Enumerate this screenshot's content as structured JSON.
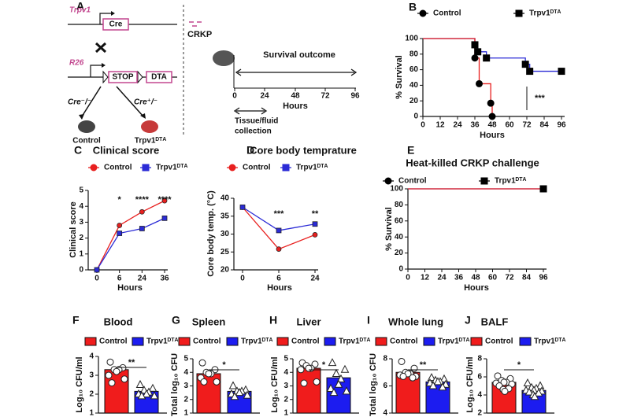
{
  "diagram": {
    "panel": "A",
    "gene1": "Trpv1",
    "box1": "Cre",
    "gene2": "R26",
    "box2": "STOP",
    "box3": "DTA",
    "genotype1": "Cre⁻/⁻",
    "genotype2": "Cre⁺/⁻",
    "group1": "Control",
    "group2": "Trpv1ᴰᵀᴬ",
    "pathogen": "CRKP",
    "outcome": "Survival outcome",
    "ticks": [
      "0",
      "24",
      "48",
      "72",
      "96"
    ],
    "axis_label": "Hours",
    "collection": [
      "Tissue/fluid",
      "collection"
    ]
  },
  "chart_data": [
    {
      "panel": "B",
      "type": "step",
      "xlabel": "Hours",
      "ylabel": "% Survival",
      "annotations": [
        "***"
      ],
      "xlim": [
        0,
        96
      ],
      "xticks": [
        0,
        12,
        24,
        36,
        48,
        60,
        72,
        84,
        96
      ],
      "ylim": [
        0,
        100
      ],
      "yticks": [
        0,
        20,
        40,
        60,
        80,
        100
      ],
      "series": [
        {
          "name": "Control",
          "color": "#e8201f",
          "marker": "circle",
          "marker_color": "#000000",
          "x": [
            0,
            36,
            36,
            39,
            47,
            48
          ],
          "values": [
            100,
            92,
            75,
            42,
            17,
            0
          ]
        },
        {
          "name": "Trpv1ᴰᵀᴬ",
          "color": "#2b2bd6",
          "marker": "square",
          "marker_color": "#000000",
          "x": [
            0,
            36,
            38,
            44,
            71,
            74,
            96
          ],
          "values": [
            100,
            92,
            83,
            75,
            67,
            58,
            58
          ]
        }
      ]
    },
    {
      "panel": "C",
      "type": "line",
      "title": "Clinical score",
      "xlabel": "Hours",
      "ylabel": "Clinical score",
      "annotations": [
        "*",
        "****",
        "****"
      ],
      "categories": [
        "0",
        "6",
        "24",
        "36"
      ],
      "ylim": [
        0,
        5
      ],
      "yticks": [
        0,
        1,
        2,
        3,
        4,
        5
      ],
      "series": [
        {
          "name": "Control",
          "color": "#e8201f",
          "marker": "circle",
          "values": [
            0,
            2.8,
            3.65,
            4.35
          ]
        },
        {
          "name": "Trpv1ᴰᵀᴬ",
          "color": "#2b2bd6",
          "marker": "square",
          "values": [
            0,
            2.3,
            2.6,
            3.25
          ]
        }
      ]
    },
    {
      "panel": "D",
      "type": "line",
      "title": "Core body temprature",
      "xlabel": "Hours",
      "ylabel": "Core body temp. (°C)",
      "annotations": [
        "***",
        "**"
      ],
      "categories": [
        "0",
        "6",
        "24"
      ],
      "ylim": [
        20,
        40
      ],
      "yticks": [
        20,
        25,
        30,
        35,
        40
      ],
      "series": [
        {
          "name": "Control",
          "color": "#e8201f",
          "marker": "circle",
          "values": [
            37.5,
            25.8,
            29.8
          ]
        },
        {
          "name": "Trpv1ᴰᵀᴬ",
          "color": "#2b2bd6",
          "marker": "square",
          "values": [
            37.5,
            31,
            32.8
          ]
        }
      ]
    },
    {
      "panel": "E",
      "type": "step",
      "title": "Heat-killed CRKP challenge",
      "xlabel": "Hours",
      "ylabel": "% Survival",
      "xlim": [
        0,
        96
      ],
      "xticks": [
        0,
        12,
        24,
        36,
        48,
        60,
        72,
        84,
        96
      ],
      "ylim": [
        0,
        100
      ],
      "yticks": [
        0,
        20,
        40,
        60,
        80,
        100
      ],
      "series": [
        {
          "name": "Control",
          "color": "#e8201f",
          "marker": "circle",
          "marker_color": "#000000",
          "x": [
            0,
            96
          ],
          "values": [
            100,
            100
          ]
        },
        {
          "name": "Trpv1ᴰᵀᴬ",
          "color": "#2b2bd6",
          "marker": "square",
          "marker_color": "#000000",
          "x": [
            0,
            96
          ],
          "values": [
            100,
            100
          ]
        }
      ]
    },
    {
      "panel": "F",
      "type": "bar",
      "title": "Blood",
      "ylabel": "Log₁₀ CFU/ml",
      "annotations": [
        "**"
      ],
      "ylim": [
        1,
        4
      ],
      "yticks": [
        1,
        2,
        3,
        4
      ],
      "series": [
        {
          "name": "Control",
          "color": "#f01c1c",
          "marker": "circle",
          "values": [
            3.3
          ],
          "points": [
            3.7,
            3.4,
            3.3,
            3.3,
            3.2,
            3.0,
            2.8,
            2.6
          ]
        },
        {
          "name": "Trpv1ᴰᵀᴬ",
          "color": "#1c1cf0",
          "marker": "triangle",
          "values": [
            2.15
          ],
          "points": [
            2.5,
            2.3,
            2.2,
            2.1,
            2.0,
            2.0,
            1.9,
            1.9
          ]
        }
      ]
    },
    {
      "panel": "G",
      "type": "bar",
      "title": "Spleen",
      "ylabel": "Total log₁₀ CFU",
      "annotations": [
        "*"
      ],
      "ylim": [
        1,
        5
      ],
      "yticks": [
        1,
        2,
        3,
        4,
        5
      ],
      "series": [
        {
          "name": "Control",
          "color": "#f01c1c",
          "marker": "circle",
          "values": [
            3.9
          ],
          "points": [
            4.7,
            4.2,
            4.0,
            3.9,
            3.9,
            3.6,
            3.3,
            3.3
          ]
        },
        {
          "name": "Trpv1ᴰᵀᴬ",
          "color": "#1c1cf0",
          "marker": "triangle",
          "values": [
            2.6
          ],
          "points": [
            3.0,
            2.7,
            2.6,
            2.6,
            2.5,
            2.4,
            2.3,
            2.2
          ]
        }
      ]
    },
    {
      "panel": "H",
      "type": "bar",
      "title": "Liver",
      "ylabel": "Log₁₀ CFU/ml",
      "annotations": [
        "*"
      ],
      "ylim": [
        1,
        5
      ],
      "yticks": [
        1,
        2,
        3,
        4,
        5
      ],
      "series": [
        {
          "name": "Control",
          "color": "#f01c1c",
          "marker": "circle",
          "values": [
            4.3
          ],
          "points": [
            4.7,
            4.6,
            4.5,
            4.3,
            4.3,
            4.2,
            3.3,
            3.2
          ]
        },
        {
          "name": "Trpv1ᴰᵀᴬ",
          "color": "#1c1cf0",
          "marker": "triangle",
          "values": [
            3.6
          ],
          "points": [
            4.7,
            4.2,
            3.9,
            3.5,
            3.1,
            2.8,
            2.6,
            2.5
          ]
        }
      ]
    },
    {
      "panel": "I",
      "type": "bar",
      "title": "Whole lung",
      "ylabel": "Total log₁₀ CFU",
      "annotations": [
        "**"
      ],
      "ylim": [
        4,
        8
      ],
      "yticks": [
        4,
        6,
        8
      ],
      "series": [
        {
          "name": "Control",
          "color": "#f01c1c",
          "marker": "circle",
          "values": [
            7.0
          ],
          "points": [
            7.8,
            7.3,
            7.0,
            6.9,
            6.9,
            6.8,
            6.7,
            6.7,
            6.6
          ]
        },
        {
          "name": "Trpv1ᴰᵀᴬ",
          "color": "#1c1cf0",
          "marker": "triangle",
          "values": [
            6.3
          ],
          "points": [
            6.6,
            6.5,
            6.4,
            6.3,
            6.3,
            6.2,
            6.1,
            6.0,
            5.9
          ]
        }
      ]
    },
    {
      "panel": "J",
      "type": "bar",
      "title": "BALF",
      "ylabel": "Log₁₀ CFU/ml",
      "annotations": [
        "*"
      ],
      "ylim": [
        2,
        8
      ],
      "yticks": [
        2,
        4,
        6,
        8
      ],
      "series": [
        {
          "name": "Control",
          "color": "#f01c1c",
          "marker": "circle",
          "values": [
            5.4
          ],
          "points": [
            6.1,
            5.8,
            5.6,
            5.4,
            5.4,
            5.3,
            5.2,
            5.0,
            4.7,
            4.6,
            4.4
          ]
        },
        {
          "name": "Trpv1ᴰᵀᴬ",
          "color": "#1c1cf0",
          "marker": "triangle",
          "values": [
            4.5
          ],
          "points": [
            5.3,
            5.0,
            4.8,
            4.7,
            4.5,
            4.5,
            4.4,
            4.3,
            4.2,
            4.0,
            3.8
          ]
        }
      ]
    }
  ]
}
